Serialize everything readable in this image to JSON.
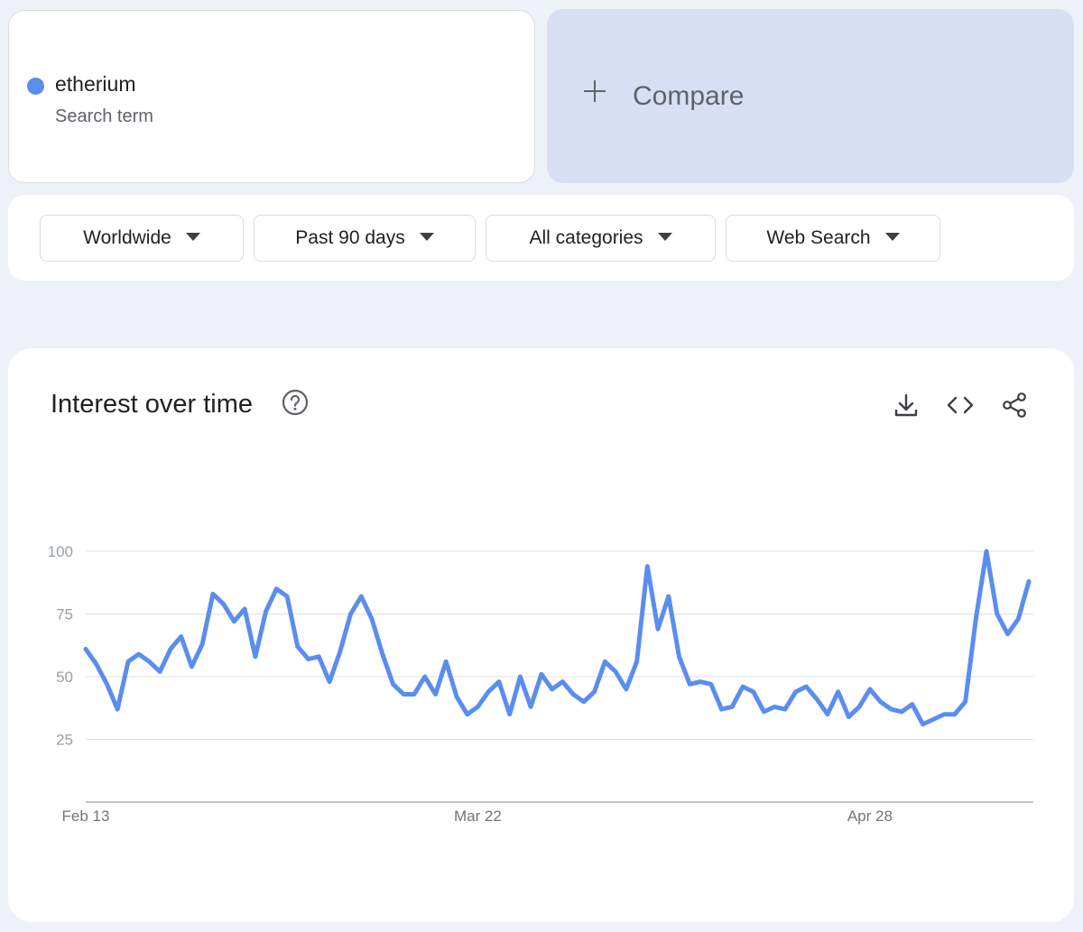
{
  "search_term": {
    "name": "etherium",
    "label": "Search term",
    "color": "#5b8dee"
  },
  "compare": {
    "label": "Compare"
  },
  "filters": {
    "region": "Worldwide",
    "time_range": "Past 90 days",
    "category": "All categories",
    "property": "Web Search"
  },
  "chart": {
    "title": "Interest over time",
    "icons": [
      "help-icon",
      "download-icon",
      "embed-code-icon",
      "share-icon"
    ]
  },
  "chart_data": {
    "type": "line",
    "title": "Interest over time",
    "xlabel": "",
    "ylabel": "",
    "ylim": [
      0,
      100
    ],
    "yticks": [
      "100",
      "75",
      "50",
      "25"
    ],
    "xticks": [
      {
        "label": "Feb 13",
        "index": 0
      },
      {
        "label": "Mar 22",
        "index": 37
      },
      {
        "label": "Apr 28",
        "index": 74
      }
    ],
    "grid": true,
    "legend": "none",
    "color": "#5b8dee",
    "series": [
      {
        "values": [
          61,
          55,
          47,
          37,
          56,
          59,
          56,
          52,
          61,
          66,
          54,
          63,
          83,
          79,
          72,
          77,
          58,
          76,
          85,
          82,
          62,
          57,
          58,
          48,
          60,
          75,
          82,
          73,
          59,
          47,
          43,
          43,
          50,
          43,
          56,
          42,
          35,
          38,
          44,
          48,
          35,
          50,
          38,
          51,
          45,
          48,
          43,
          40,
          44,
          56,
          52,
          45,
          56,
          94,
          69,
          82,
          58,
          47,
          48,
          47,
          37,
          38,
          46,
          44,
          36,
          38,
          37,
          44,
          46,
          41,
          35,
          44,
          34,
          38,
          45,
          40,
          37,
          36,
          39,
          31,
          33,
          35,
          35,
          40,
          73,
          100,
          75,
          67,
          73,
          88
        ]
      }
    ]
  }
}
